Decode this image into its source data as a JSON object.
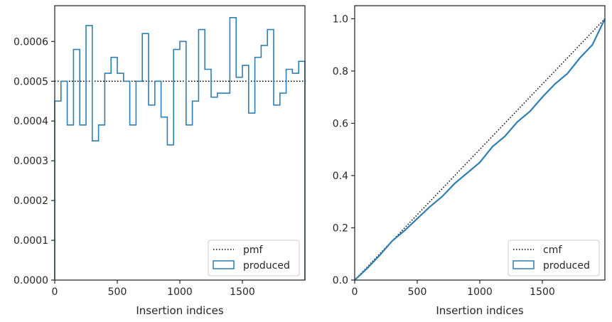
{
  "colors": {
    "series": "#2f7fb4",
    "reference": "#000000",
    "axes": "#262626",
    "background": "#ffffff"
  },
  "chart_data": [
    {
      "type": "line",
      "subtype": "step-histogram",
      "xlabel": "Insertion indices",
      "ylabel": "",
      "xlim": [
        0,
        2000
      ],
      "ylim": [
        0,
        0.00069
      ],
      "xticks": [
        0,
        500,
        1000,
        1500
      ],
      "xtick_labels": [
        "0",
        "500",
        "1000",
        "1500"
      ],
      "yticks": [
        0,
        0.0001,
        0.0002,
        0.0003,
        0.0004,
        0.0005,
        0.0006
      ],
      "ytick_labels": [
        "0.0000",
        "0.0001",
        "0.0002",
        "0.0003",
        "0.0004",
        "0.0005",
        "0.0006"
      ],
      "legend_position": "lower-right",
      "series": [
        {
          "name": "pmf",
          "style": "dotted",
          "x": [
            0,
            2000
          ],
          "y": [
            0.0005,
            0.0005
          ]
        },
        {
          "name": "produced",
          "style": "step",
          "bin_edges": [
            0,
            50,
            100,
            150,
            200,
            250,
            300,
            350,
            400,
            450,
            500,
            550,
            600,
            650,
            700,
            750,
            800,
            850,
            900,
            950,
            1000,
            1050,
            1100,
            1150,
            1200,
            1250,
            1300,
            1350,
            1400,
            1450,
            1500,
            1550,
            1600,
            1650,
            1700,
            1750,
            1800,
            1850,
            1900,
            1950,
            2000
          ],
          "values": [
            0.00045,
            0.0005,
            0.00039,
            0.00058,
            0.00039,
            0.00064,
            0.00035,
            0.00039,
            0.00052,
            0.00056,
            0.00052,
            0.0005,
            0.00039,
            0.0005,
            0.00062,
            0.00044,
            0.0005,
            0.00041,
            0.00034,
            0.00058,
            0.0006,
            0.00039,
            0.00045,
            0.00063,
            0.00053,
            0.00046,
            0.00047,
            0.00047,
            0.00066,
            0.00051,
            0.00054,
            0.00042,
            0.00056,
            0.00059,
            0.00063,
            0.00044,
            0.00047,
            0.00053,
            0.00052,
            0.00055
          ]
        }
      ]
    },
    {
      "type": "line",
      "subtype": "step-cumulative",
      "xlabel": "Insertion indices",
      "ylabel": "",
      "xlim": [
        0,
        2000
      ],
      "ylim": [
        0,
        1.05
      ],
      "xticks": [
        0,
        500,
        1000,
        1500
      ],
      "xtick_labels": [
        "0",
        "500",
        "1000",
        "1500"
      ],
      "yticks": [
        0,
        0.2,
        0.4,
        0.6,
        0.8,
        1.0
      ],
      "ytick_labels": [
        "0.0",
        "0.2",
        "0.4",
        "0.6",
        "0.8",
        "1.0"
      ],
      "legend_position": "lower-right",
      "series": [
        {
          "name": "cmf",
          "style": "dotted",
          "x": [
            0,
            2000
          ],
          "y": [
            0,
            1.0
          ]
        },
        {
          "name": "produced",
          "style": "line",
          "x": [
            0,
            100,
            200,
            300,
            400,
            500,
            600,
            700,
            800,
            900,
            1000,
            1100,
            1200,
            1300,
            1400,
            1500,
            1600,
            1700,
            1800,
            1900,
            2000
          ],
          "y": [
            0,
            0.045,
            0.095,
            0.15,
            0.19,
            0.235,
            0.28,
            0.32,
            0.37,
            0.41,
            0.45,
            0.51,
            0.55,
            0.605,
            0.645,
            0.7,
            0.75,
            0.79,
            0.85,
            0.9,
            1.0
          ]
        }
      ]
    }
  ]
}
